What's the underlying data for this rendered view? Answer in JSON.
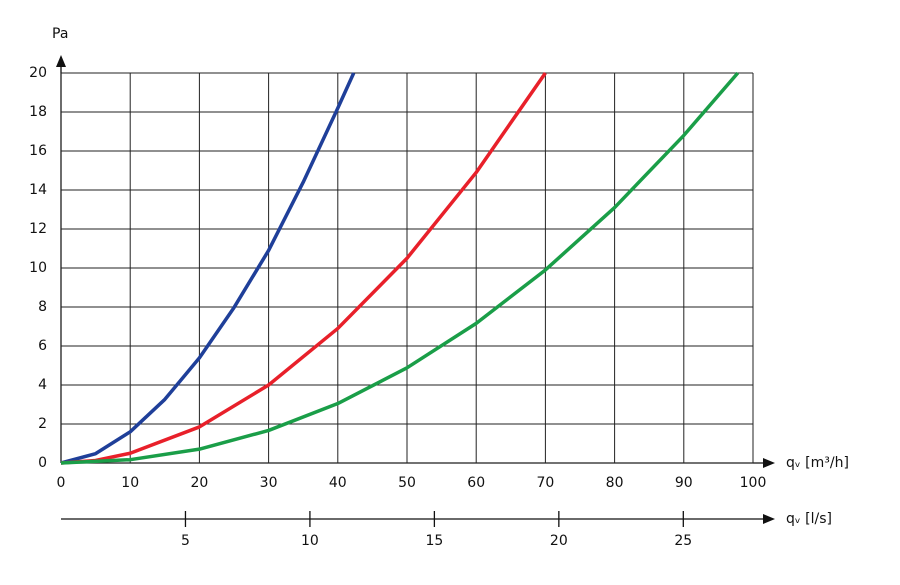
{
  "chart_data": {
    "type": "line",
    "y_label": "Pa",
    "x_label": "qᵥ [m³/h]",
    "x2_label": "qᵥ [l/s]",
    "xlim": [
      0,
      100
    ],
    "xticks": [
      0,
      10,
      20,
      30,
      40,
      50,
      60,
      70,
      80,
      90,
      100
    ],
    "ylim": [
      0,
      20
    ],
    "yticks": [
      0,
      2,
      4,
      6,
      8,
      10,
      12,
      14,
      16,
      18,
      20
    ],
    "x2lim": [
      0,
      27.8
    ],
    "x2ticks": [
      5,
      10,
      15,
      20,
      25
    ],
    "grid": true,
    "series": [
      {
        "color": "#1f3f99",
        "x": [
          0,
          5,
          10,
          15,
          20,
          25,
          30,
          35,
          40,
          42.3
        ],
        "values": [
          0,
          0.48,
          1.6,
          3.26,
          5.39,
          7.97,
          10.9,
          14.4,
          18.2,
          20
        ]
      },
      {
        "color": "#e8202a",
        "x": [
          0,
          5,
          10,
          20,
          30,
          40,
          50,
          60,
          70
        ],
        "values": [
          0,
          0.13,
          0.5,
          1.85,
          4,
          6.9,
          10.5,
          14.9,
          20
        ]
      },
      {
        "color": "#1a9e48",
        "x": [
          0,
          10,
          20,
          30,
          40,
          50,
          60,
          70,
          80,
          90,
          97.8
        ],
        "values": [
          0,
          0.17,
          0.71,
          1.67,
          3.05,
          4.88,
          7.16,
          9.9,
          13.1,
          16.8,
          20
        ]
      }
    ]
  }
}
